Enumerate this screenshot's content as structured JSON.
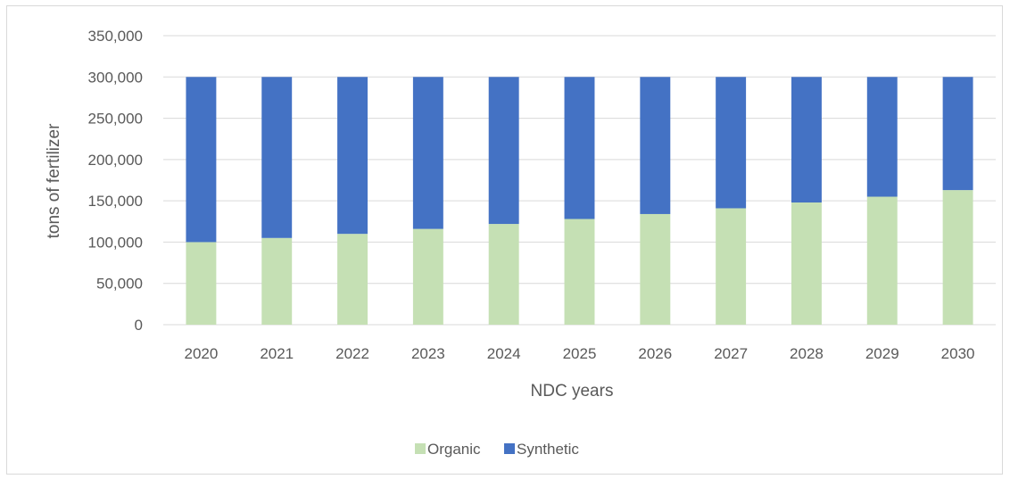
{
  "chart_data": {
    "type": "bar",
    "stacked": true,
    "categories": [
      "2020",
      "2021",
      "2022",
      "2023",
      "2024",
      "2025",
      "2026",
      "2027",
      "2028",
      "2029",
      "2030"
    ],
    "series": [
      {
        "name": "Organic",
        "color": "#c5e0b4",
        "values": [
          100000,
          105000,
          110000,
          116000,
          122000,
          128000,
          134000,
          141000,
          148000,
          155000,
          163000
        ]
      },
      {
        "name": "Synthetic",
        "color": "#4472c4",
        "values": [
          200000,
          195000,
          190000,
          184000,
          178000,
          172000,
          166000,
          159000,
          152000,
          145000,
          137000
        ]
      }
    ],
    "xlabel": "NDC years",
    "ylabel": "tons of fertilizer",
    "ylim": [
      0,
      350000
    ],
    "yticks": [
      "0",
      "50,000",
      "100,000",
      "150,000",
      "200,000",
      "250,000",
      "300,000",
      "350,000"
    ],
    "grid": true,
    "legend_position": "bottom"
  }
}
